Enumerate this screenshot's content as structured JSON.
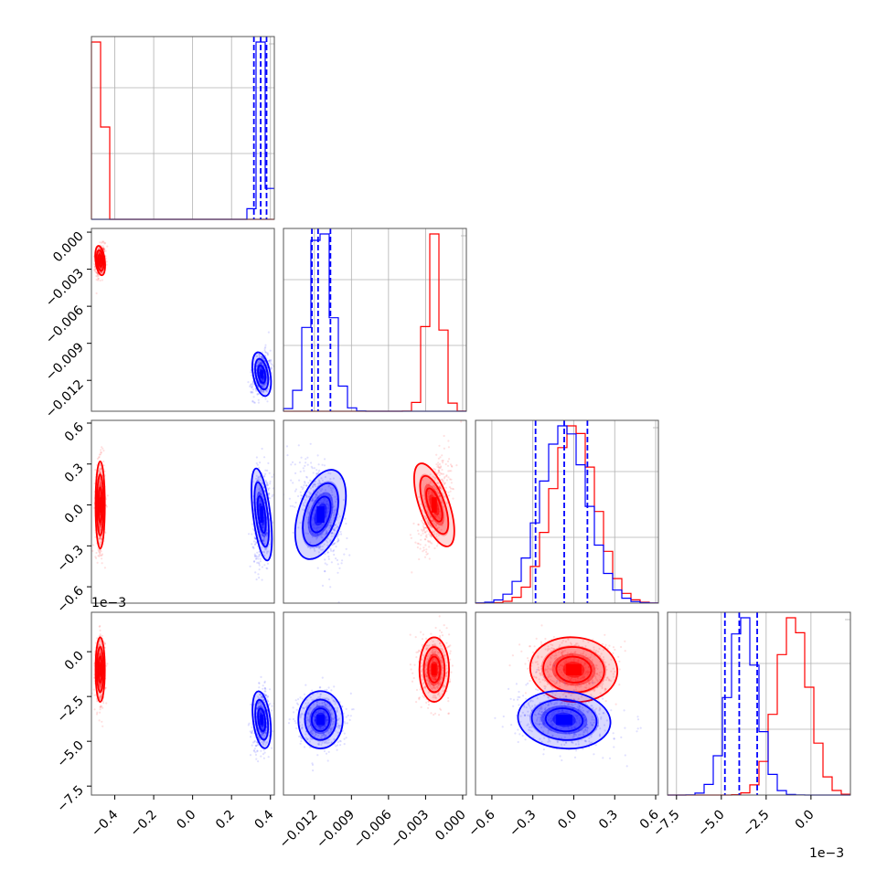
{
  "chart_data": {
    "type": "corner",
    "grid": true,
    "colors": {
      "series_a": "#ff0000",
      "series_b": "#0000ff"
    },
    "parameters": [
      {
        "range": [
          -0.52,
          0.42
        ],
        "ticks": [
          "−0.4",
          "−0.2",
          "0.0",
          "0.2",
          "0.4"
        ],
        "tick_values": [
          -0.4,
          -0.2,
          0.0,
          0.2,
          0.4
        ],
        "offset_label": ""
      },
      {
        "range": [
          -0.0145,
          0.0003
        ],
        "ticks": [
          "0.000",
          "−0.003",
          "−0.006",
          "−0.009",
          "−0.012"
        ],
        "tick_values": [
          0.0,
          -0.003,
          -0.006,
          -0.009,
          -0.012
        ],
        "offset_label": ""
      },
      {
        "range": [
          -0.72,
          0.62
        ],
        "ticks": [
          "0.6",
          "0.3",
          "0.0",
          "−0.3",
          "−0.6"
        ],
        "tick_values": [
          0.6,
          0.3,
          0.0,
          -0.3,
          -0.6
        ],
        "offset_label": ""
      },
      {
        "range": [
          -0.008,
          0.0022
        ],
        "ticks": [
          "0.0",
          "−2.5",
          "−5.0",
          "−7.5"
        ],
        "tick_values": [
          0.0,
          -0.0025,
          -0.005,
          -0.0075
        ],
        "offset_label": "1e−3"
      }
    ],
    "bottom_ticks": [
      {
        "labels": [
          "−0.4",
          "−0.2",
          "0.0",
          "0.2",
          "0.4"
        ],
        "values": [
          -0.4,
          -0.2,
          0.0,
          0.2,
          0.4
        ]
      },
      {
        "labels": [
          "−0.012",
          "−0.009",
          "−0.006",
          "−0.003",
          "0.000"
        ],
        "values": [
          -0.012,
          -0.009,
          -0.006,
          -0.003,
          0.0
        ]
      },
      {
        "labels": [
          "−0.6",
          "−0.3",
          "0.0",
          "0.3",
          "0.6"
        ],
        "values": [
          -0.6,
          -0.3,
          0.0,
          0.3,
          0.6
        ]
      },
      {
        "labels": [
          "−7.5",
          "−5.0",
          "−2.5",
          "0.0"
        ],
        "values": [
          -0.0075,
          -0.005,
          -0.0025,
          0.0
        ]
      }
    ],
    "series": [
      {
        "color": "#ff0000",
        "means": [
          -0.475,
          -0.0023,
          0.0,
          -0.001
        ],
        "sigmas": [
          0.012,
          0.0006,
          0.16,
          0.0009
        ],
        "hist_peak_x": [
          -0.48,
          -0.0022,
          -0.03,
          -0.0012
        ]
      },
      {
        "color": "#0000ff",
        "means": [
          0.355,
          -0.0115,
          -0.07,
          -0.0038
        ],
        "sigmas": [
          0.022,
          0.0009,
          0.17,
          0.0008
        ],
        "quantile_lines": [
          [
            0.315,
            0.35,
            0.38
          ],
          [
            -0.0122,
            -0.0117,
            -0.0107
          ],
          [
            -0.28,
            -0.07,
            0.1
          ],
          [
            -0.0048,
            -0.004,
            -0.003
          ]
        ]
      }
    ]
  }
}
